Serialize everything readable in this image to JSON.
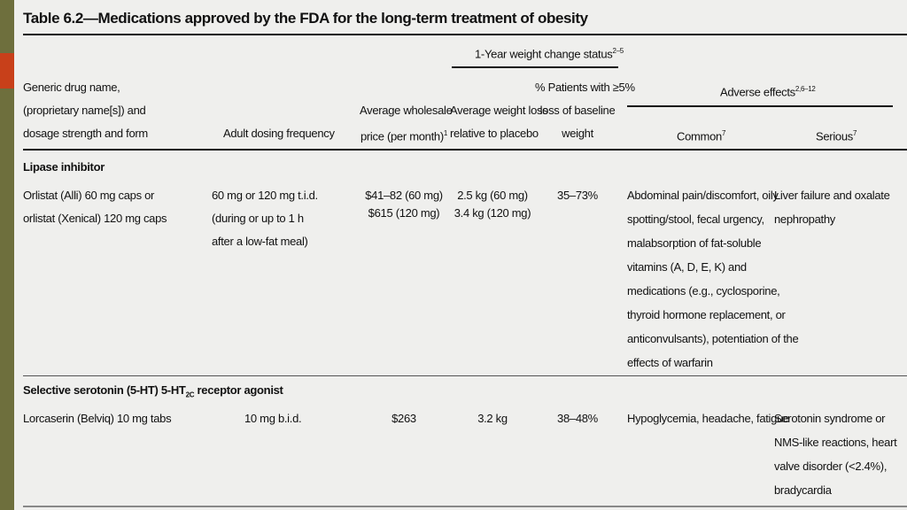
{
  "title": "Table 6.2—Medications approved by the FDA for the long-term treatment of obesity",
  "header": {
    "weight_change_group": "1-Year weight change status",
    "weight_change_sup": "2–5",
    "adverse_group": "Adverse effects",
    "adverse_sup": "2,6–12",
    "col_drug_lines": [
      "Generic drug name,",
      "(proprietary name[s]) and",
      "dosage strength and form"
    ],
    "col_dosing": "Adult dosing frequency",
    "col_price_lines": [
      "Average wholesale",
      "price (per month)"
    ],
    "col_price_sup": "1",
    "col_loss_lines": [
      "Average weight loss",
      "relative to placebo"
    ],
    "col_patients_lines": [
      "% Patients with ≥5%",
      "loss of baseline",
      "weight"
    ],
    "col_common": "Common",
    "col_common_sup": "7",
    "col_serious": "Serious",
    "col_serious_sup": "7"
  },
  "sections": [
    {
      "heading": "Lipase inhibitor",
      "drug_lines": [
        "Orlistat (Alli) 60 mg caps or",
        "orlistat (Xenical) 120 mg caps"
      ],
      "dosing_lines": [
        "60 mg or 120 mg t.i.d.",
        "(during or up to 1 h",
        "after a low-fat meal)"
      ],
      "price_lines": [
        "$41–82 (60 mg)",
        "$615 (120 mg)"
      ],
      "loss_lines": [
        "2.5 kg (60 mg)",
        "3.4 kg (120 mg)"
      ],
      "patients": "35–73%",
      "common_lines": [
        "Abdominal pain/discomfort, oily",
        "spotting/stool, fecal urgency,",
        "malabsorption of fat-soluble",
        "vitamins (A, D, E, K) and",
        "medications (e.g., cyclosporine,",
        "thyroid hormone replacement, or",
        "anticonvulsants), potentiation of the",
        "effects of warfarin"
      ],
      "serious_lines": [
        "Liver failure and oxalate",
        "nephropathy"
      ]
    },
    {
      "heading_pre": "Selective serotonin (5-HT) 5-HT",
      "heading_sub": "2C",
      "heading_post": " receptor agonist",
      "drug": "Lorcaserin (Belviq) 10 mg tabs",
      "dosing": "10 mg b.i.d.",
      "price": "$263",
      "loss": "3.2 kg",
      "patients": "38–48%",
      "common": "Hypoglycemia, headache, fatigue",
      "serious_lines": [
        "Serotonin syndrome or",
        "NMS-like reactions, heart",
        "valve disorder (<2.4%),",
        "bradycardia"
      ]
    }
  ]
}
